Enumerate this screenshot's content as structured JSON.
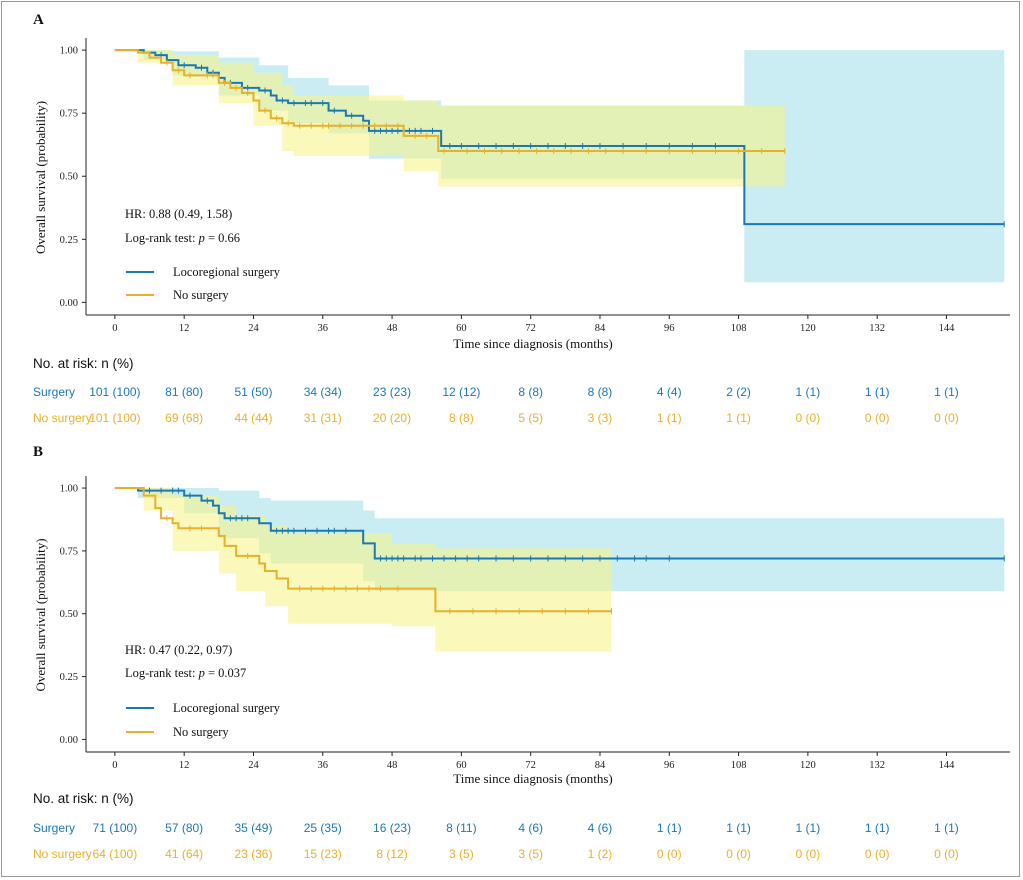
{
  "colors": {
    "surgery": "#1a78b4",
    "no_surgery": "#e6b12b",
    "surgery_ci": "#bfeaf0",
    "no_surgery_ci": "#f7f48e",
    "overlap_ci": "#d8f2b4"
  },
  "chart_data": [
    {
      "type": "line",
      "panel": "A",
      "ylabel": "Overall survival (probability)",
      "xlabel": "Time since diagnosis (months)",
      "xticks": [
        0,
        12,
        24,
        36,
        48,
        60,
        72,
        84,
        96,
        108,
        120,
        132,
        144
      ],
      "yticks": [
        0.0,
        0.25,
        0.5,
        0.75,
        1.0
      ],
      "xlim": [
        -5,
        155
      ],
      "ylim": [
        -0.05,
        1.04
      ],
      "hr_text": "HR: 0.88 (0.49, 1.58)",
      "logrank_prefix": "Log-rank test: ",
      "logrank_p": "p",
      "logrank_value": " = 0.66",
      "series": [
        {
          "name": "Locoregional surgery",
          "color_key": "surgery",
          "steps": [
            [
              0,
              1.0
            ],
            [
              5,
              0.99
            ],
            [
              7,
              0.98
            ],
            [
              9,
              0.96
            ],
            [
              11,
              0.94
            ],
            [
              14,
              0.93
            ],
            [
              16,
              0.91
            ],
            [
              18,
              0.89
            ],
            [
              19,
              0.87
            ],
            [
              22,
              0.85
            ],
            [
              25,
              0.84
            ],
            [
              27,
              0.82
            ],
            [
              28,
              0.8
            ],
            [
              30,
              0.79
            ],
            [
              35,
              0.79
            ],
            [
              37,
              0.76
            ],
            [
              40,
              0.74
            ],
            [
              43,
              0.72
            ],
            [
              44,
              0.68
            ],
            [
              56,
              0.68
            ],
            [
              56.5,
              0.62
            ],
            [
              109,
              0.62
            ],
            [
              109,
              0.31
            ],
            [
              154,
              0.31
            ]
          ],
          "censors": [
            8,
            12,
            15,
            17,
            20,
            23,
            26,
            29,
            31,
            33,
            34,
            36,
            38,
            41,
            45,
            46,
            47,
            48,
            49,
            50,
            51,
            52,
            53,
            55,
            58,
            60,
            63,
            66,
            69,
            72,
            75,
            78,
            81,
            84,
            88,
            92,
            96,
            100,
            104,
            154
          ],
          "ci": [
            [
              0,
              1.0,
              1.0
            ],
            [
              5,
              0.96,
              1.0
            ],
            [
              10,
              0.9,
              0.995
            ],
            [
              18,
              0.82,
              0.97
            ],
            [
              25,
              0.76,
              0.94
            ],
            [
              30,
              0.71,
              0.89
            ],
            [
              37,
              0.67,
              0.86
            ],
            [
              44,
              0.57,
              0.8
            ],
            [
              56,
              0.57,
              0.8
            ],
            [
              56.5,
              0.49,
              0.78
            ],
            [
              109,
              0.49,
              0.78
            ],
            [
              109,
              0.08,
              1.0
            ],
            [
              154,
              0.08,
              1.0
            ]
          ]
        },
        {
          "name": "No surgery",
          "color_key": "no_surgery",
          "steps": [
            [
              0,
              1.0
            ],
            [
              4,
              0.99
            ],
            [
              6,
              0.97
            ],
            [
              8,
              0.95
            ],
            [
              10,
              0.92
            ],
            [
              12,
              0.9
            ],
            [
              18,
              0.87
            ],
            [
              20,
              0.85
            ],
            [
              22,
              0.83
            ],
            [
              24,
              0.8
            ],
            [
              25,
              0.76
            ],
            [
              27,
              0.73
            ],
            [
              29,
              0.71
            ],
            [
              31,
              0.7
            ],
            [
              48,
              0.7
            ],
            [
              50,
              0.66
            ],
            [
              55,
              0.66
            ],
            [
              56,
              0.6
            ],
            [
              116,
              0.6
            ]
          ],
          "censors": [
            9,
            11,
            13,
            16,
            17,
            19,
            21,
            23,
            26,
            28,
            30,
            32,
            34,
            36,
            37,
            39,
            41,
            43,
            45,
            47,
            49,
            52,
            54,
            57,
            61,
            64,
            67,
            70,
            73,
            76,
            79,
            82,
            85,
            88,
            92,
            96,
            100,
            104,
            108,
            112,
            116
          ],
          "ci": [
            [
              0,
              1.0,
              1.0
            ],
            [
              4,
              0.95,
              1.0
            ],
            [
              10,
              0.86,
              0.98
            ],
            [
              18,
              0.79,
              0.95
            ],
            [
              24,
              0.7,
              0.91
            ],
            [
              29,
              0.6,
              0.86
            ],
            [
              31,
              0.58,
              0.82
            ],
            [
              48,
              0.58,
              0.82
            ],
            [
              50,
              0.52,
              0.8
            ],
            [
              55,
              0.52,
              0.8
            ],
            [
              56,
              0.46,
              0.78
            ],
            [
              116,
              0.46,
              0.78
            ]
          ]
        }
      ],
      "risk_table": {
        "title": "No. at risk: n (%)",
        "rows": [
          {
            "label": "Surgery",
            "color_key": "surgery",
            "values": [
              "101 (100)",
              "81 (80)",
              "51 (50)",
              "34 (34)",
              "23 (23)",
              "12 (12)",
              "8 (8)",
              "8 (8)",
              "4 (4)",
              "2 (2)",
              "1 (1)",
              "1 (1)",
              "1 (1)"
            ]
          },
          {
            "label": "No surgery",
            "color_key": "no_surgery",
            "values": [
              "101 (100)",
              "69 (68)",
              "44 (44)",
              "31 (31)",
              "20 (20)",
              "8 (8)",
              "5 (5)",
              "3 (3)",
              "1 (1)",
              "1 (1)",
              "0 (0)",
              "0 (0)",
              "0 (0)"
            ]
          }
        ]
      }
    },
    {
      "type": "line",
      "panel": "B",
      "ylabel": "Overall survival (probability)",
      "xlabel": "Time since diagnosis (months)",
      "xticks": [
        0,
        12,
        24,
        36,
        48,
        60,
        72,
        84,
        96,
        108,
        120,
        132,
        144
      ],
      "yticks": [
        0.0,
        0.25,
        0.5,
        0.75,
        1.0
      ],
      "xlim": [
        -5,
        155
      ],
      "ylim": [
        -0.05,
        1.04
      ],
      "hr_text": "HR: 0.47 (0.22, 0.97)",
      "logrank_prefix": "Log-rank test: ",
      "logrank_p": "p",
      "logrank_value": " = 0.037",
      "series": [
        {
          "name": "Locoregional surgery",
          "color_key": "surgery",
          "steps": [
            [
              0,
              1.0
            ],
            [
              4,
              0.99
            ],
            [
              12,
              0.97
            ],
            [
              15,
              0.95
            ],
            [
              17,
              0.93
            ],
            [
              18,
              0.9
            ],
            [
              19,
              0.88
            ],
            [
              25,
              0.86
            ],
            [
              27,
              0.83
            ],
            [
              42,
              0.83
            ],
            [
              43,
              0.78
            ],
            [
              45,
              0.72
            ],
            [
              154,
              0.72
            ]
          ],
          "censors": [
            6,
            8,
            10,
            11,
            13,
            16,
            20,
            21,
            22,
            23,
            28,
            29,
            30,
            31,
            33,
            35,
            37,
            38,
            40,
            46,
            47,
            48,
            49,
            50,
            52,
            53,
            55,
            57,
            59,
            61,
            63,
            66,
            69,
            72,
            75,
            78,
            81,
            84,
            87,
            90,
            92,
            96,
            154
          ],
          "ci": [
            [
              0,
              1.0,
              1.0
            ],
            [
              4,
              0.96,
              1.0
            ],
            [
              12,
              0.9,
              1.0
            ],
            [
              18,
              0.8,
              0.99
            ],
            [
              25,
              0.74,
              0.96
            ],
            [
              27,
              0.7,
              0.95
            ],
            [
              42,
              0.7,
              0.95
            ],
            [
              43,
              0.63,
              0.91
            ],
            [
              45,
              0.59,
              0.88
            ],
            [
              154,
              0.59,
              0.88
            ]
          ]
        },
        {
          "name": "No surgery",
          "color_key": "no_surgery",
          "steps": [
            [
              0,
              1.0
            ],
            [
              5,
              0.97
            ],
            [
              7,
              0.92
            ],
            [
              8,
              0.88
            ],
            [
              10,
              0.86
            ],
            [
              11,
              0.84
            ],
            [
              18,
              0.81
            ],
            [
              19,
              0.77
            ],
            [
              21,
              0.73
            ],
            [
              25,
              0.7
            ],
            [
              26,
              0.67
            ],
            [
              28,
              0.64
            ],
            [
              30,
              0.6
            ],
            [
              48,
              0.6
            ],
            [
              55,
              0.6
            ],
            [
              55.5,
              0.51
            ],
            [
              86,
              0.51
            ]
          ],
          "censors": [
            9,
            13,
            15,
            23,
            32,
            34,
            36,
            38,
            40,
            42,
            44,
            46,
            49,
            58,
            62,
            66,
            70,
            74,
            78,
            82,
            86
          ],
          "ci": [
            [
              0,
              1.0,
              1.0
            ],
            [
              5,
              0.91,
              1.0
            ],
            [
              10,
              0.75,
              0.97
            ],
            [
              18,
              0.66,
              0.93
            ],
            [
              21,
              0.59,
              0.89
            ],
            [
              26,
              0.53,
              0.85
            ],
            [
              30,
              0.46,
              0.82
            ],
            [
              48,
              0.45,
              0.78
            ],
            [
              55.5,
              0.35,
              0.76
            ],
            [
              86,
              0.35,
              0.76
            ]
          ]
        }
      ],
      "risk_table": {
        "title": "No. at risk: n (%)",
        "rows": [
          {
            "label": "Surgery",
            "color_key": "surgery",
            "values": [
              "71 (100)",
              "57 (80)",
              "35 (49)",
              "25 (35)",
              "16 (23)",
              "8 (11)",
              "4 (6)",
              "4 (6)",
              "1 (1)",
              "1 (1)",
              "1 (1)",
              "1 (1)",
              "1 (1)"
            ]
          },
          {
            "label": "No surgery",
            "color_key": "no_surgery",
            "values": [
              "64 (100)",
              "41 (64)",
              "23 (36)",
              "15 (23)",
              "8 (12)",
              "3 (5)",
              "3 (5)",
              "1 (2)",
              "0 (0)",
              "0 (0)",
              "0 (0)",
              "0 (0)",
              "0 (0)"
            ]
          }
        ]
      }
    }
  ]
}
